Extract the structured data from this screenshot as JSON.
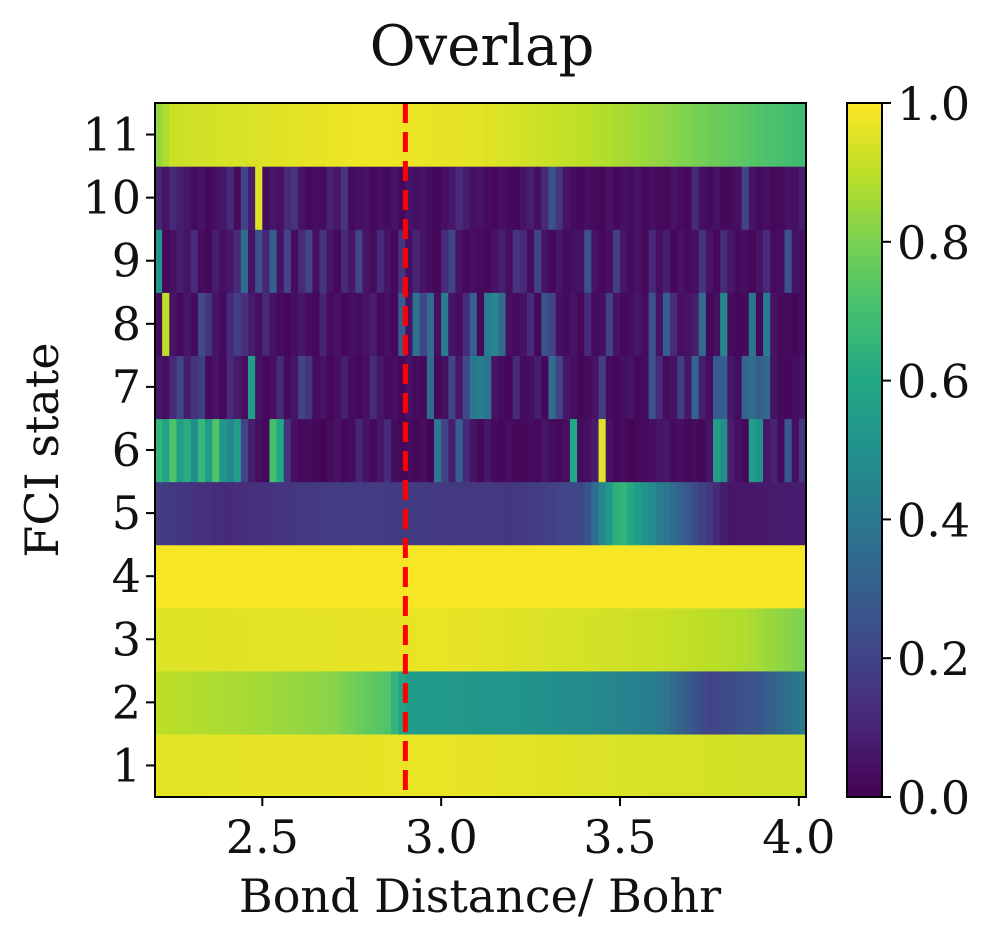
{
  "chart_data": {
    "type": "heatmap",
    "title": "Overlap",
    "xlabel": "Bond Distance/ Bohr",
    "ylabel": "FCI state",
    "xlim": [
      2.2,
      4.02
    ],
    "x_start": 2.2,
    "x_step": 0.02,
    "n_columns": 91,
    "x_ticks": [
      2.5,
      3.0,
      3.5,
      4.0
    ],
    "x_tick_labels": [
      "2.5",
      "3.0",
      "3.5",
      "4.0"
    ],
    "y_ticks": [
      1,
      2,
      3,
      4,
      5,
      6,
      7,
      8,
      9,
      10,
      11
    ],
    "y_tick_labels": [
      "1",
      "2",
      "3",
      "4",
      "5",
      "6",
      "7",
      "8",
      "9",
      "10",
      "11"
    ],
    "colormap": "viridis",
    "colorbar": {
      "range": [
        0.0,
        1.0
      ],
      "ticks": [
        0.0,
        0.2,
        0.4,
        0.6,
        0.8,
        1.0
      ],
      "tick_labels": [
        "0.0",
        "0.2",
        "0.4",
        "0.6",
        "0.8",
        "1.0"
      ]
    },
    "vline": {
      "x": 2.9,
      "color": "#ff0000",
      "style": "dashed"
    },
    "rows": [
      {
        "state": 1,
        "profile": [
          [
            2.2,
            0.96
          ],
          [
            3.0,
            0.97
          ],
          [
            3.6,
            0.94
          ],
          [
            4.02,
            0.93
          ]
        ]
      },
      {
        "state": 2,
        "profile": [
          [
            2.2,
            0.9
          ],
          [
            2.5,
            0.86
          ],
          [
            2.7,
            0.82
          ],
          [
            2.85,
            0.72
          ],
          [
            2.9,
            0.55
          ],
          [
            3.3,
            0.5
          ],
          [
            3.6,
            0.42
          ],
          [
            3.75,
            0.2
          ],
          [
            3.9,
            0.28
          ],
          [
            4.02,
            0.42
          ]
        ]
      },
      {
        "state": 3,
        "profile": [
          [
            2.2,
            0.95
          ],
          [
            3.0,
            0.97
          ],
          [
            3.6,
            0.92
          ],
          [
            3.85,
            0.88
          ],
          [
            4.02,
            0.8
          ]
        ]
      },
      {
        "state": 4,
        "profile": [
          [
            2.2,
            0.99
          ],
          [
            4.02,
            0.99
          ]
        ]
      },
      {
        "state": 5,
        "profile": [
          [
            2.2,
            0.18
          ],
          [
            2.4,
            0.12
          ],
          [
            2.7,
            0.18
          ],
          [
            3.2,
            0.16
          ],
          [
            3.4,
            0.22
          ],
          [
            3.45,
            0.45
          ],
          [
            3.5,
            0.68
          ],
          [
            3.55,
            0.55
          ],
          [
            3.7,
            0.25
          ],
          [
            3.8,
            0.06
          ],
          [
            4.02,
            0.08
          ]
        ]
      },
      {
        "state": 6,
        "levels": [
          0.65,
          0.58,
          0.72,
          0.55,
          0.62,
          0.48,
          0.66,
          0.54,
          0.72,
          0.52,
          0.45,
          0.55,
          0.2,
          0.08,
          0.04,
          0.02,
          0.7,
          0.6,
          0.15,
          0.04,
          0.02,
          0.03,
          0.02,
          0.01,
          0.03,
          0.05,
          0.02,
          0.03,
          0.1,
          0.05,
          0.02,
          0.06,
          0.12,
          0.03,
          0.02,
          0.03,
          0.02,
          0.04,
          0.01,
          0.4,
          0.2,
          0.08,
          0.3,
          0.12,
          0.05,
          0.02,
          0.06,
          0.03,
          0.02,
          0.04,
          0.02,
          0.02,
          0.03,
          0.02,
          0.06,
          0.03,
          0.02,
          0.04,
          0.6,
          0.03,
          0.04,
          0.08,
          0.95,
          0.05,
          0.02,
          0.03,
          0.01,
          0.02,
          0.03,
          0.04,
          0.05,
          0.06,
          0.03,
          0.04,
          0.02,
          0.03,
          0.02,
          0.05,
          0.55,
          0.48,
          0.08,
          0.04,
          0.02,
          0.55,
          0.5,
          0.06,
          0.1,
          0.03,
          0.28,
          0.04,
          0.15
        ]
      },
      {
        "state": 7,
        "levels": [
          0.06,
          0.04,
          0.12,
          0.2,
          0.08,
          0.15,
          0.18,
          0.03,
          0.05,
          0.02,
          0.12,
          0.07,
          0.04,
          0.55,
          0.05,
          0.02,
          0.04,
          0.12,
          0.03,
          0.06,
          0.2,
          0.15,
          0.03,
          0.05,
          0.02,
          0.04,
          0.08,
          0.03,
          0.02,
          0.04,
          0.12,
          0.06,
          0.03,
          0.04,
          0.02,
          0.05,
          0.03,
          0.02,
          0.35,
          0.02,
          0.04,
          0.2,
          0.06,
          0.22,
          0.4,
          0.42,
          0.38,
          0.05,
          0.03,
          0.02,
          0.12,
          0.03,
          0.04,
          0.08,
          0.02,
          0.35,
          0.2,
          0.06,
          0.04,
          0.02,
          0.03,
          0.05,
          0.18,
          0.03,
          0.02,
          0.04,
          0.05,
          0.02,
          0.03,
          0.25,
          0.12,
          0.03,
          0.05,
          0.18,
          0.06,
          0.32,
          0.08,
          0.04,
          0.28,
          0.3,
          0.06,
          0.03,
          0.32,
          0.35,
          0.3,
          0.34,
          0.05,
          0.03,
          0.02,
          0.04,
          0.05
        ]
      },
      {
        "state": 8,
        "levels": [
          0.03,
          0.9,
          0.05,
          0.02,
          0.06,
          0.03,
          0.22,
          0.15,
          0.05,
          0.03,
          0.12,
          0.18,
          0.14,
          0.08,
          0.04,
          0.12,
          0.05,
          0.03,
          0.02,
          0.04,
          0.06,
          0.03,
          0.02,
          0.1,
          0.03,
          0.05,
          0.02,
          0.04,
          0.03,
          0.05,
          0.08,
          0.02,
          0.04,
          0.02,
          0.3,
          0.05,
          0.38,
          0.2,
          0.35,
          0.04,
          0.42,
          0.05,
          0.03,
          0.12,
          0.3,
          0.02,
          0.42,
          0.45,
          0.35,
          0.04,
          0.03,
          0.05,
          0.12,
          0.02,
          0.25,
          0.2,
          0.04,
          0.03,
          0.05,
          0.02,
          0.12,
          0.03,
          0.04,
          0.2,
          0.05,
          0.02,
          0.04,
          0.06,
          0.03,
          0.25,
          0.05,
          0.3,
          0.12,
          0.04,
          0.05,
          0.08,
          0.35,
          0.02,
          0.04,
          0.45,
          0.03,
          0.02,
          0.03,
          0.4,
          0.02,
          0.42,
          0.05,
          0.03,
          0.03,
          0.02,
          0.04
        ]
      },
      {
        "state": 9,
        "levels": [
          0.52,
          0.02,
          0.04,
          0.08,
          0.05,
          0.12,
          0.03,
          0.02,
          0.08,
          0.04,
          0.06,
          0.12,
          0.35,
          0.05,
          0.25,
          0.1,
          0.3,
          0.05,
          0.2,
          0.03,
          0.12,
          0.2,
          0.04,
          0.15,
          0.05,
          0.02,
          0.12,
          0.06,
          0.2,
          0.05,
          0.03,
          0.12,
          0.05,
          0.02,
          0.15,
          0.04,
          0.1,
          0.05,
          0.03,
          0.02,
          0.12,
          0.2,
          0.05,
          0.02,
          0.04,
          0.03,
          0.02,
          0.05,
          0.08,
          0.04,
          0.15,
          0.12,
          0.03,
          0.2,
          0.05,
          0.02,
          0.06,
          0.03,
          0.04,
          0.05,
          0.25,
          0.05,
          0.02,
          0.04,
          0.18,
          0.06,
          0.03,
          0.05,
          0.02,
          0.12,
          0.04,
          0.08,
          0.02,
          0.05,
          0.03,
          0.04,
          0.15,
          0.05,
          0.02,
          0.12,
          0.06,
          0.03,
          0.04,
          0.02,
          0.05,
          0.12,
          0.03,
          0.04,
          0.25,
          0.05,
          0.04
        ]
      },
      {
        "state": 10,
        "levels": [
          0.1,
          0.05,
          0.12,
          0.08,
          0.06,
          0.03,
          0.05,
          0.02,
          0.04,
          0.06,
          0.12,
          0.03,
          0.2,
          0.08,
          0.95,
          0.03,
          0.06,
          0.04,
          0.12,
          0.15,
          0.05,
          0.02,
          0.04,
          0.03,
          0.1,
          0.06,
          0.15,
          0.03,
          0.04,
          0.05,
          0.02,
          0.04,
          0.03,
          0.05,
          0.02,
          0.06,
          0.04,
          0.05,
          0.03,
          0.02,
          0.04,
          0.06,
          0.12,
          0.08,
          0.04,
          0.05,
          0.03,
          0.02,
          0.04,
          0.03,
          0.02,
          0.05,
          0.08,
          0.04,
          0.12,
          0.25,
          0.15,
          0.05,
          0.03,
          0.02,
          0.04,
          0.03,
          0.02,
          0.05,
          0.02,
          0.04,
          0.03,
          0.05,
          0.02,
          0.04,
          0.03,
          0.02,
          0.05,
          0.03,
          0.02,
          0.12,
          0.04,
          0.03,
          0.05,
          0.02,
          0.03,
          0.04,
          0.2,
          0.05,
          0.03,
          0.04,
          0.02,
          0.03,
          0.05,
          0.04,
          0.08
        ]
      },
      {
        "state": 11,
        "profile": [
          [
            2.2,
            0.82
          ],
          [
            2.25,
            0.92
          ],
          [
            2.5,
            0.95
          ],
          [
            2.8,
            0.98
          ],
          [
            3.1,
            0.96
          ],
          [
            3.4,
            0.9
          ],
          [
            3.6,
            0.84
          ],
          [
            3.75,
            0.78
          ],
          [
            3.9,
            0.72
          ],
          [
            4.02,
            0.68
          ]
        ]
      }
    ]
  }
}
